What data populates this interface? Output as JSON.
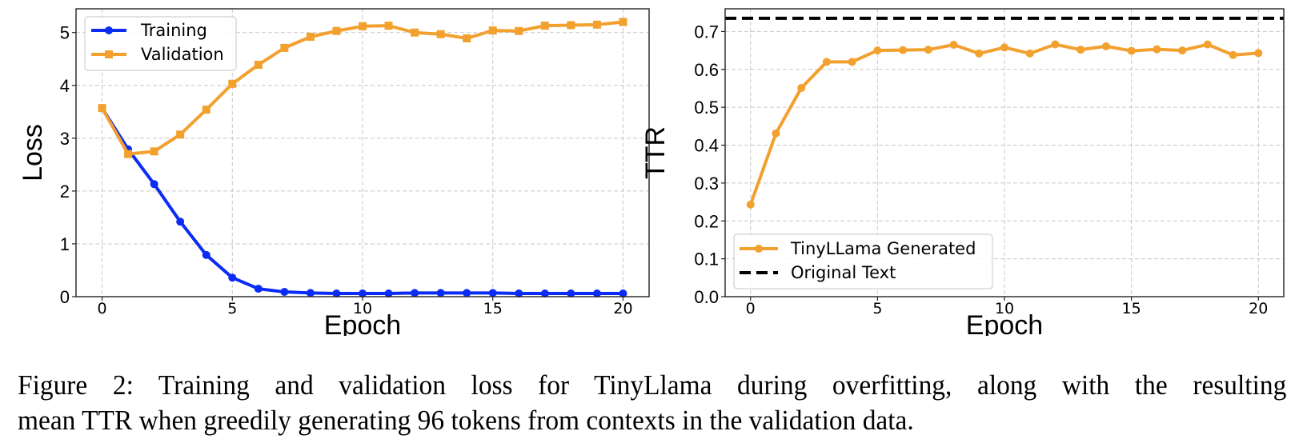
{
  "figure": {
    "caption_line1": "Figure 2: Training and validation loss for TinyLlama during overfitting, along with the resulting",
    "caption_line2": "mean TTR when greedily generating 96 tokens from contexts in the validation data."
  },
  "colors": {
    "training": "#0a2cf5",
    "validation": "#f2a02e",
    "generated": "#f2a02e",
    "original": "#000000"
  },
  "chart_data": [
    {
      "type": "line",
      "title": "",
      "xlabel": "Epoch",
      "ylabel": "Loss",
      "xlim": [
        -1,
        21
      ],
      "ylim": [
        0,
        5.45
      ],
      "xticks": [
        0,
        5,
        10,
        15,
        20
      ],
      "xtick_labels": [
        "0",
        "5",
        "10",
        "15",
        "20"
      ],
      "yticks": [
        0,
        1,
        2,
        3,
        4,
        5
      ],
      "ytick_labels": [
        "0",
        "1",
        "2",
        "3",
        "4",
        "5"
      ],
      "grid": true,
      "legend_position": "upper-left",
      "x": [
        0,
        1,
        2,
        3,
        4,
        5,
        6,
        7,
        8,
        9,
        10,
        11,
        12,
        13,
        14,
        15,
        16,
        17,
        18,
        19,
        20
      ],
      "series": [
        {
          "name": "Training",
          "marker": "circle",
          "color": "#0a2cf5",
          "values": [
            3.57,
            2.79,
            2.13,
            1.42,
            0.79,
            0.36,
            0.15,
            0.09,
            0.07,
            0.06,
            0.06,
            0.06,
            0.07,
            0.07,
            0.07,
            0.07,
            0.06,
            0.06,
            0.06,
            0.06,
            0.06
          ]
        },
        {
          "name": "Validation",
          "marker": "square",
          "color": "#f2a02e",
          "values": [
            3.57,
            2.7,
            2.75,
            3.07,
            3.54,
            4.03,
            4.39,
            4.71,
            4.92,
            5.03,
            5.12,
            5.13,
            5.0,
            4.97,
            4.89,
            5.04,
            5.03,
            5.13,
            5.14,
            5.15,
            5.2
          ]
        }
      ]
    },
    {
      "type": "line",
      "title": "",
      "xlabel": "Epoch",
      "ylabel": "TTR",
      "xlim": [
        -1,
        21
      ],
      "ylim": [
        0,
        0.76
      ],
      "xticks": [
        0,
        5,
        10,
        15,
        20
      ],
      "xtick_labels": [
        "0",
        "5",
        "10",
        "15",
        "20"
      ],
      "yticks": [
        0.0,
        0.1,
        0.2,
        0.3,
        0.4,
        0.5,
        0.6,
        0.7
      ],
      "ytick_labels": [
        "0.0",
        "0.1",
        "0.2",
        "0.3",
        "0.4",
        "0.5",
        "0.6",
        "0.7"
      ],
      "grid": true,
      "legend_position": "lower-left",
      "x": [
        0,
        1,
        2,
        3,
        4,
        5,
        6,
        7,
        8,
        9,
        10,
        11,
        12,
        13,
        14,
        15,
        16,
        17,
        18,
        19,
        20
      ],
      "series": [
        {
          "name": "TinyLLama Generated",
          "marker": "circle",
          "color": "#f2a02e",
          "values": [
            0.243,
            0.431,
            0.551,
            0.62,
            0.62,
            0.65,
            0.651,
            0.652,
            0.665,
            0.642,
            0.658,
            0.642,
            0.666,
            0.652,
            0.661,
            0.649,
            0.653,
            0.65,
            0.666,
            0.638,
            0.643
          ]
        },
        {
          "name": "Original Text",
          "style": "dashed",
          "color": "#000000",
          "constant": 0.735
        }
      ]
    }
  ]
}
